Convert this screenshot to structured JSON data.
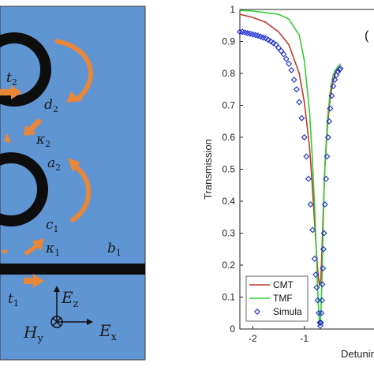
{
  "schematic": {
    "labels": {
      "t2": {
        "main": "t",
        "sub": "2"
      },
      "d2": {
        "main": "d",
        "sub": "2"
      },
      "kappa2": {
        "main": "κ",
        "sub": "2"
      },
      "a2": {
        "main": "a",
        "sub": "2"
      },
      "c1": {
        "main": "c",
        "sub": "1"
      },
      "kappa1": {
        "main": "κ",
        "sub": "1"
      },
      "b1": {
        "main": "b",
        "sub": "1"
      },
      "t1": {
        "main": "t",
        "sub": "1"
      },
      "Ez": {
        "main": "E",
        "sub": "z"
      },
      "Hy": {
        "main": "H",
        "sub": "y"
      },
      "Ex": {
        "main": "E",
        "sub": "x"
      }
    },
    "colors": {
      "background": "#5f95d3",
      "ring": "#0d0d0d",
      "arrow": "#e8873a"
    }
  },
  "chart_data": {
    "type": "line",
    "panel_tag": "(",
    "xlabel": "Detuning",
    "ylabel": "Transmission",
    "xlim": [
      -2.25,
      0.35
    ],
    "ylim": [
      0,
      1
    ],
    "xticks": [
      -2,
      -1
    ],
    "xtick_labels": [
      "-2",
      "-1"
    ],
    "yticks": [
      0,
      0.1,
      0.2,
      0.3,
      0.4,
      0.5,
      0.6,
      0.7,
      0.8,
      0.9,
      1
    ],
    "ytick_labels": [
      "0",
      "0.1",
      "0.2",
      "0.3",
      "0.4",
      "0.5",
      "0.6",
      "0.7",
      "0.8",
      "0.9",
      "1"
    ],
    "legend_position": "bottom-left",
    "series": [
      {
        "name": "CMT",
        "color": "#c0392b",
        "style": "line",
        "x": [
          -2.25,
          -2.0,
          -1.75,
          -1.5,
          -1.3,
          -1.1,
          -1.0,
          -0.9,
          -0.85,
          -0.8,
          -0.75,
          -0.72,
          -0.7,
          -0.68,
          -0.66,
          -0.64,
          -0.62,
          -0.6,
          -0.55,
          -0.5,
          -0.45,
          -0.4,
          -0.35,
          -0.3
        ],
        "y": [
          0.985,
          0.975,
          0.96,
          0.93,
          0.89,
          0.8,
          0.71,
          0.57,
          0.46,
          0.33,
          0.2,
          0.15,
          0.135,
          0.16,
          0.24,
          0.34,
          0.43,
          0.51,
          0.64,
          0.72,
          0.77,
          0.8,
          0.82,
          0.83
        ]
      },
      {
        "name": "TMF",
        "color": "#33cc33",
        "style": "line",
        "x": [
          -2.25,
          -2.0,
          -1.75,
          -1.5,
          -1.3,
          -1.1,
          -1.0,
          -0.9,
          -0.85,
          -0.8,
          -0.77,
          -0.74,
          -0.72,
          -0.7,
          -0.68,
          -0.66,
          -0.64,
          -0.62,
          -0.6,
          -0.55,
          -0.5,
          -0.45,
          -0.4,
          -0.35,
          -0.3
        ],
        "y": [
          0.997,
          0.995,
          0.99,
          0.985,
          0.97,
          0.92,
          0.84,
          0.68,
          0.55,
          0.38,
          0.25,
          0.12,
          0.05,
          0.01,
          0.05,
          0.15,
          0.29,
          0.42,
          0.52,
          0.66,
          0.74,
          0.79,
          0.81,
          0.82,
          0.83
        ]
      },
      {
        "name": "Simula",
        "color": "#1f2fd0",
        "style": "markers",
        "x": [
          -2.25,
          -2.2,
          -2.15,
          -2.1,
          -2.05,
          -2.0,
          -1.95,
          -1.9,
          -1.85,
          -1.8,
          -1.75,
          -1.7,
          -1.65,
          -1.6,
          -1.55,
          -1.5,
          -1.45,
          -1.4,
          -1.35,
          -1.3,
          -1.25,
          -1.2,
          -1.15,
          -1.1,
          -1.05,
          -1.0,
          -0.96,
          -0.92,
          -0.88,
          -0.84,
          -0.8,
          -0.78,
          -0.76,
          -0.74,
          -0.72,
          -0.7,
          -0.69,
          -0.68,
          -0.67,
          -0.66,
          -0.65,
          -0.64,
          -0.63,
          -0.62,
          -0.6,
          -0.58,
          -0.56,
          -0.54,
          -0.52,
          -0.5,
          -0.47,
          -0.44,
          -0.41,
          -0.38,
          -0.35,
          -0.32,
          -0.3
        ],
        "y": [
          0.93,
          0.93,
          0.928,
          0.926,
          0.924,
          0.922,
          0.92,
          0.918,
          0.915,
          0.912,
          0.91,
          0.905,
          0.9,
          0.895,
          0.89,
          0.88,
          0.87,
          0.86,
          0.845,
          0.83,
          0.81,
          0.78,
          0.75,
          0.71,
          0.66,
          0.6,
          0.54,
          0.47,
          0.39,
          0.31,
          0.22,
          0.17,
          0.13,
          0.09,
          0.05,
          0.02,
          0.01,
          0.02,
          0.05,
          0.09,
          0.14,
          0.19,
          0.25,
          0.3,
          0.39,
          0.47,
          0.54,
          0.6,
          0.65,
          0.69,
          0.73,
          0.76,
          0.78,
          0.795,
          0.805,
          0.812,
          0.815
        ]
      }
    ]
  }
}
